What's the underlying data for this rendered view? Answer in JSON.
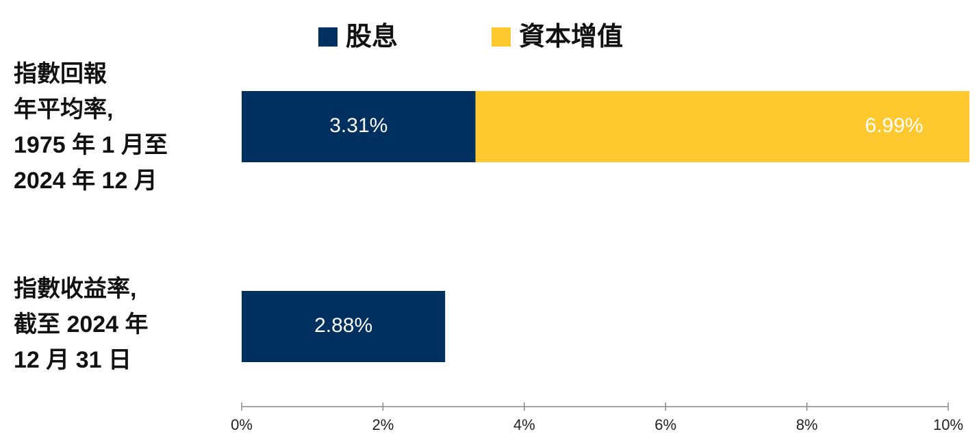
{
  "chart_data": {
    "type": "stacked-bar-horizontal",
    "categories": [
      "指數回報\n年平均率,\n1975 年 1 月至\n2024 年 12 月",
      "指數收益率,\n截至 2024 年\n12 月 31 日"
    ],
    "series": [
      {
        "name": "股息",
        "color": "#00305f",
        "values": [
          3.31,
          2.88
        ],
        "value_labels": [
          "3.31%",
          "2.88%"
        ]
      },
      {
        "name": "資本增值",
        "color": "#ffc82e",
        "values": [
          6.99,
          null
        ],
        "value_labels": [
          "6.99%",
          null
        ]
      }
    ],
    "xlim": [
      0,
      10
    ],
    "xticks": [
      {
        "value": 0,
        "label": "0%"
      },
      {
        "value": 2,
        "label": "2%"
      },
      {
        "value": 4,
        "label": "4%"
      },
      {
        "value": 6,
        "label": "6%"
      },
      {
        "value": 8,
        "label": "8%"
      },
      {
        "value": 10,
        "label": "10%"
      }
    ],
    "legend": "top"
  }
}
